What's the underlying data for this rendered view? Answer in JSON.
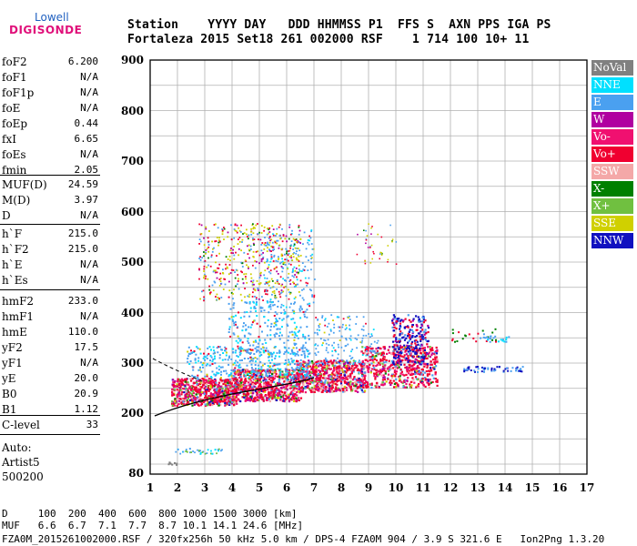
{
  "logo": {
    "line1": "Lowell",
    "line2": "DIGISONDE"
  },
  "header": {
    "labels": "Station    YYYY DAY   DDD HHMMSS P1  FFS S  AXN PPS IGA PS",
    "values": "Fortaleza 2015 Set18 261 002000 RSF    1 714 100 10+ 11"
  },
  "params": [
    {
      "name": "foF2",
      "value": "6.200"
    },
    {
      "name": "foF1",
      "value": "N/A"
    },
    {
      "name": "foF1p",
      "value": "N/A"
    },
    {
      "name": "foE",
      "value": "N/A"
    },
    {
      "name": "foEp",
      "value": "0.44"
    },
    {
      "name": "fxI",
      "value": "6.65"
    },
    {
      "name": "foEs",
      "value": "N/A"
    },
    {
      "name": "fmin",
      "value": "2.05"
    },
    {
      "name": "MUF(D)",
      "value": "24.59"
    },
    {
      "name": "M(D)",
      "value": "3.97"
    },
    {
      "name": "D",
      "value": "N/A"
    },
    {
      "name": "h`F",
      "value": "215.0"
    },
    {
      "name": "h`F2",
      "value": "215.0"
    },
    {
      "name": "h`E",
      "value": "N/A"
    },
    {
      "name": "h`Es",
      "value": "N/A"
    },
    {
      "name": "hmF2",
      "value": "233.0"
    },
    {
      "name": "hmF1",
      "value": "N/A"
    },
    {
      "name": "hmE",
      "value": "110.0"
    },
    {
      "name": "yF2",
      "value": "17.5"
    },
    {
      "name": "yF1",
      "value": "N/A"
    },
    {
      "name": "yE",
      "value": "20.0"
    },
    {
      "name": "B0",
      "value": "20.9"
    },
    {
      "name": "B1",
      "value": "1.12"
    },
    {
      "name": "C-level",
      "value": "33"
    }
  ],
  "auto": {
    "line1": "Auto:",
    "line2": "Artist5",
    "line3": "500200"
  },
  "legend": [
    {
      "label": "NoVal",
      "color": "#808080"
    },
    {
      "label": "NNE",
      "color": "#00e0ff"
    },
    {
      "label": "E",
      "color": "#4aa0f0"
    },
    {
      "label": "W",
      "color": "#b000a0"
    },
    {
      "label": "Vo-",
      "color": "#f01070"
    },
    {
      "label": "Vo+",
      "color": "#f00030"
    },
    {
      "label": "SSW",
      "color": "#f4a8a8"
    },
    {
      "label": "X-",
      "color": "#008000"
    },
    {
      "label": "X+",
      "color": "#70c040"
    },
    {
      "label": "SSE",
      "color": "#d0d000"
    },
    {
      "label": "NNW",
      "color": "#1010c0"
    }
  ],
  "axes": {
    "y_ticks": [
      "900",
      "800",
      "700",
      "600",
      "500",
      "400",
      "300",
      "200",
      "80"
    ],
    "x_ticks": [
      "1",
      "2",
      "3",
      "4",
      "5",
      "6",
      "7",
      "8",
      "9",
      "10",
      "11",
      "12",
      "13",
      "14",
      "15",
      "16",
      "17"
    ]
  },
  "bottom": {
    "d_row": "D     100  200  400  600  800 1000 1500 3000 [km]",
    "muf_row": "MUF   6.6  6.7  7.1  7.7  8.7 10.1 14.1 24.6 [MHz]",
    "footer": "FZA0M_2015261002000.RSF / 320fx256h 50 kHz 5.0 km / DPS-4 FZA0M 904 / 3.9 S 321.6 E   Ion2Png 1.3.20"
  }
}
